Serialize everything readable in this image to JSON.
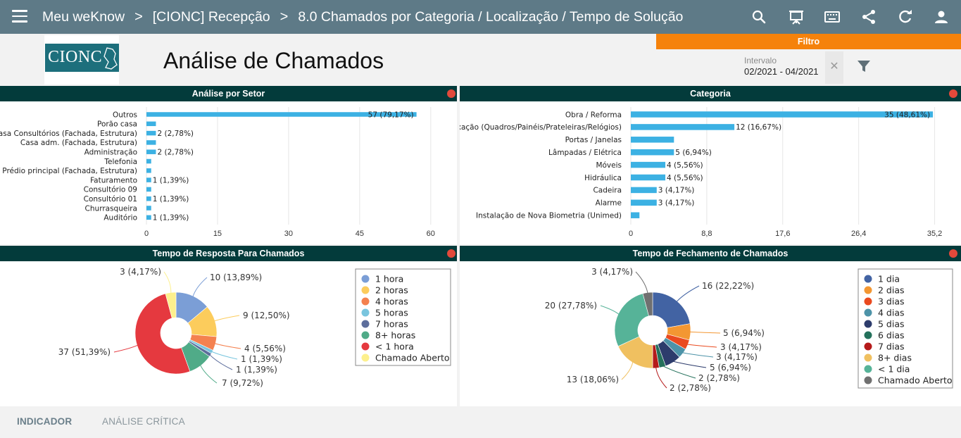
{
  "app": {
    "brand": "Meu weKnow",
    "breadcrumb": [
      "[CIONC] Recepção",
      "8.0 Chamados por Categoria / Localização / Tempo de Solução"
    ],
    "toolbar_icons": [
      "search-icon",
      "presentation-icon",
      "keyboard-icon",
      "share-icon",
      "refresh-icon",
      "user-icon"
    ]
  },
  "filter": {
    "tab_label": "Filtro",
    "interval_label": "Intervalo",
    "interval_value": "02/2021 - 04/2021",
    "clear_symbol": "✕"
  },
  "logo_text": "CIONC",
  "page_title": "Análise de Chamados",
  "panels": {
    "setor": {
      "title": "Análise por Setor"
    },
    "categoria": {
      "title": "Categoria"
    },
    "resposta": {
      "title": "Tempo de Resposta Para Chamados"
    },
    "fechamento": {
      "title": "Tempo de Fechamento de Chamados"
    }
  },
  "chart_data": [
    {
      "type": "bar",
      "orientation": "horizontal",
      "title": "Análise por Setor",
      "categories": [
        "Outros",
        "Porão casa",
        "Casa Consultórios (Fachada, Estrutura)",
        "Casa adm. (Fachada, Estrutura)",
        "Administração",
        "Telefonia",
        "Prédio principal (Fachada, Estrutura)",
        "Faturamento",
        "Consultório 09",
        "Consultório 01",
        "Churrasqueira",
        "Auditório"
      ],
      "values": [
        57,
        2,
        2,
        2,
        2,
        1,
        1,
        1,
        1,
        1,
        1,
        1
      ],
      "data_labels": [
        "57 (79,17%)",
        "",
        "2 (2,78%)",
        "",
        "2 (2,78%)",
        "",
        "",
        "1 (1,39%)",
        "",
        "1 (1,39%)",
        "",
        "1 (1,39%)"
      ],
      "xlim": [
        0,
        63
      ],
      "xticks": [
        "0",
        "15",
        "30",
        "45",
        "60"
      ],
      "xtick_values": [
        0,
        15,
        30,
        45,
        60
      ],
      "grid": true,
      "bar_color": "#3cb1e3"
    },
    {
      "type": "bar",
      "orientation": "horizontal",
      "title": "Categoria",
      "categories": [
        "Obra / Reforma",
        "Fixação (Quadros/Painéis/Prateleiras/Relógios)",
        "Portas / Janelas",
        "Lâmpadas / Elétrica",
        "Móveis",
        "Hidráulica",
        "Cadeira",
        "Alarme",
        "Instalação de Nova Biometria (Unimed)"
      ],
      "values": [
        35,
        12,
        5,
        5,
        4,
        4,
        3,
        3,
        1
      ],
      "data_labels": [
        "35 (48,61%)",
        "12 (16,67%)",
        "",
        "5 (6,94%)",
        "4 (5,56%)",
        "4 (5,56%)",
        "3 (4,17%)",
        "3 (4,17%)",
        ""
      ],
      "xlim": [
        0,
        36.5
      ],
      "xticks": [
        "0",
        "8,8",
        "17,6",
        "26,4",
        "35,2"
      ],
      "xtick_values": [
        0,
        8.8,
        17.6,
        26.4,
        35.2
      ],
      "grid": true,
      "bar_color": "#3cb1e3"
    },
    {
      "type": "pie",
      "donut": true,
      "title": "Tempo de Resposta Para Chamados",
      "legend_position": "right",
      "slices": [
        {
          "name": "1 hora",
          "value": 10,
          "label": "10 (13,89%)",
          "color": "#7b9ed6"
        },
        {
          "name": "2 horas",
          "value": 9,
          "label": "9 (12,50%)",
          "color": "#fccc5c"
        },
        {
          "name": "4 horas",
          "value": 4,
          "label": "4 (5,56%)",
          "color": "#f4814f"
        },
        {
          "name": "5 horas",
          "value": 1,
          "label": "1 (1,39%)",
          "color": "#79c5de"
        },
        {
          "name": "7 horas",
          "value": 1,
          "label": "1 (1,39%)",
          "color": "#5d6e9c"
        },
        {
          "name": "8+ horas",
          "value": 7,
          "label": "7 (9,72%)",
          "color": "#50ab88"
        },
        {
          "name": "< 1 hora",
          "value": 37,
          "label": "37 (51,39%)",
          "color": "#e5393f"
        },
        {
          "name": "Chamado Aberto",
          "value": 3,
          "label": "3 (4,17%)",
          "color": "#fdf08d"
        }
      ]
    },
    {
      "type": "pie",
      "donut": true,
      "title": "Tempo de Fechamento de Chamados",
      "legend_position": "right",
      "slices": [
        {
          "name": "1 dia",
          "value": 16,
          "label": "16 (22,22%)",
          "color": "#4263a3"
        },
        {
          "name": "2 dias",
          "value": 5,
          "label": "5 (6,94%)",
          "color": "#f39732"
        },
        {
          "name": "3 dias",
          "value": 3,
          "label": "3 (4,17%)",
          "color": "#ea4a1f"
        },
        {
          "name": "4 dias",
          "value": 3,
          "label": "3 (4,17%)",
          "color": "#4d93a8"
        },
        {
          "name": "5 dias",
          "value": 5,
          "label": "5 (6,94%)",
          "color": "#2d3c6c"
        },
        {
          "name": "6 dias",
          "value": 2,
          "label": "2 (2,78%)",
          "color": "#24715b"
        },
        {
          "name": "7 dias",
          "value": 2,
          "label": "2 (2,78%)",
          "color": "#b51a1a"
        },
        {
          "name": "8+ dias",
          "value": 13,
          "label": "13 (18,06%)",
          "color": "#f0c060"
        },
        {
          "name": "< 1 dia",
          "value": 20,
          "label": "20 (27,78%)",
          "color": "#56b398"
        },
        {
          "name": "Chamado Aberto",
          "value": 3,
          "label": "3 (4,17%)",
          "color": "#707070"
        }
      ]
    }
  ],
  "bottom_tabs": [
    "INDICADOR",
    "ANÁLISE CRÍTICA"
  ],
  "colors": {
    "topbar": "#5e7a87",
    "filter_tab": "#f5820b",
    "panel_header": "#033b3b",
    "status_dot": "#e2493b",
    "logo_plate": "#1d6f7c"
  }
}
